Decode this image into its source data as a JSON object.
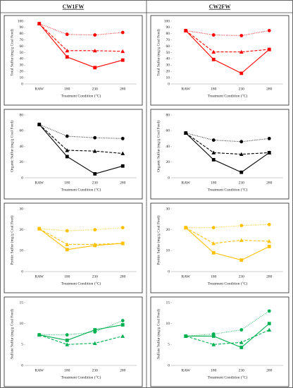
{
  "column_headers": [
    "CW1FW",
    "CW2FW"
  ],
  "chart_data": [
    {
      "type": "line",
      "y_label": "Total Sulfur (mg/g Coal Feed)",
      "x_label": "Treatment Condition (°C)",
      "categories": [
        "RAW",
        "180",
        "230",
        "280"
      ],
      "ylim": [
        0,
        100
      ],
      "yticks": [
        0,
        10,
        20,
        30,
        40,
        50,
        60,
        70,
        80,
        90,
        100
      ],
      "series": [
        {
          "color": "#ff0000",
          "marker": "circle",
          "line_style": "dotted",
          "values": [
            96,
            79,
            78,
            82
          ]
        },
        {
          "color": "#ff0000",
          "marker": "triangle",
          "line_style": "dashed",
          "values": [
            96,
            53,
            53,
            52
          ]
        },
        {
          "color": "#ff0000",
          "marker": "square",
          "line_style": "solid",
          "values": [
            96,
            43,
            26,
            38
          ]
        }
      ]
    },
    {
      "type": "line",
      "y_label": "Total Sulfur (mg/g Coal Feed)",
      "x_label": "Treatment Condition (°C)",
      "categories": [
        "RAW",
        "180",
        "230",
        "280"
      ],
      "ylim": [
        0,
        100
      ],
      "yticks": [
        0,
        10,
        20,
        30,
        40,
        50,
        60,
        70,
        80,
        90,
        100
      ],
      "series": [
        {
          "color": "#ff0000",
          "marker": "circle",
          "line_style": "dotted",
          "values": [
            85,
            78,
            77,
            85
          ]
        },
        {
          "color": "#ff0000",
          "marker": "triangle",
          "line_style": "dashed",
          "values": [
            85,
            51,
            51,
            55
          ]
        },
        {
          "color": "#ff0000",
          "marker": "square",
          "line_style": "solid",
          "values": [
            85,
            39,
            17,
            55
          ]
        }
      ]
    },
    {
      "type": "line",
      "y_label": "Organic Sulfur (mg/g Coal Feed)",
      "x_label": "Treatment Condition (°C)",
      "categories": [
        "RAW",
        "180",
        "230",
        "280"
      ],
      "ylim": [
        0,
        80
      ],
      "yticks": [
        0,
        20,
        40,
        60,
        80
      ],
      "series": [
        {
          "color": "#000000",
          "marker": "circle",
          "line_style": "dotted",
          "values": [
            68,
            53,
            51,
            50
          ]
        },
        {
          "color": "#000000",
          "marker": "triangle",
          "line_style": "dashed",
          "values": [
            68,
            35,
            34,
            31
          ]
        },
        {
          "color": "#000000",
          "marker": "square",
          "line_style": "solid",
          "values": [
            68,
            27,
            5,
            15
          ]
        }
      ]
    },
    {
      "type": "line",
      "y_label": "Organic Sulfur (mg/g Coal Feed)",
      "x_label": "Treatment Condition (°C)",
      "categories": [
        "RAW",
        "180",
        "230",
        "280"
      ],
      "ylim": [
        0,
        80
      ],
      "yticks": [
        0,
        20,
        40,
        60,
        80
      ],
      "series": [
        {
          "color": "#000000",
          "marker": "circle",
          "line_style": "dotted",
          "values": [
            57,
            48,
            46,
            50
          ]
        },
        {
          "color": "#000000",
          "marker": "triangle",
          "line_style": "dashed",
          "values": [
            57,
            32,
            30,
            32
          ]
        },
        {
          "color": "#000000",
          "marker": "square",
          "line_style": "solid",
          "values": [
            57,
            23,
            7,
            32
          ]
        }
      ]
    },
    {
      "type": "line",
      "y_label": "Pyritic Sulfur (mg/g Coal Feed)",
      "x_label": "Treatment Condition (°C)",
      "categories": [
        "RAW",
        "180",
        "230",
        "280"
      ],
      "ylim": [
        0,
        30
      ],
      "yticks": [
        0,
        10,
        20,
        30
      ],
      "series": [
        {
          "color": "#ffc000",
          "marker": "circle",
          "line_style": "dotted",
          "values": [
            20.5,
            19.5,
            20,
            21
          ]
        },
        {
          "color": "#ffc000",
          "marker": "triangle",
          "line_style": "dashed",
          "values": [
            20.5,
            13,
            13,
            13.5
          ]
        },
        {
          "color": "#ffc000",
          "marker": "square",
          "line_style": "solid",
          "values": [
            20.5,
            10.5,
            12.5,
            13.5
          ]
        }
      ]
    },
    {
      "type": "line",
      "y_label": "Pyritic Sulfur (mg/g Coal Feed)",
      "x_label": "Treatment Condition (°C)",
      "categories": [
        "RAW",
        "180",
        "230",
        "280"
      ],
      "ylim": [
        0,
        30
      ],
      "yticks": [
        0,
        10,
        20,
        30
      ],
      "series": [
        {
          "color": "#ffc000",
          "marker": "circle",
          "line_style": "dotted",
          "values": [
            21,
            21,
            22,
            22.5
          ]
        },
        {
          "color": "#ffc000",
          "marker": "triangle",
          "line_style": "dashed",
          "values": [
            21,
            13.5,
            15,
            14.5
          ]
        },
        {
          "color": "#ffc000",
          "marker": "square",
          "line_style": "solid",
          "values": [
            21,
            9,
            5.5,
            12
          ]
        }
      ]
    },
    {
      "type": "line",
      "y_label": "Sulfate Sulfur (mg/g Coal Feed)",
      "x_label": "Treatment Condition (°C)",
      "categories": [
        "RAW",
        "180",
        "230",
        "280"
      ],
      "ylim": [
        0,
        15
      ],
      "yticks": [
        0,
        5,
        10,
        15
      ],
      "series": [
        {
          "color": "#00b050",
          "marker": "circle",
          "line_style": "dotted",
          "values": [
            7.3,
            7.3,
            8,
            10.7
          ]
        },
        {
          "color": "#00b050",
          "marker": "triangle",
          "line_style": "dashed",
          "values": [
            7.3,
            5,
            5.3,
            7
          ]
        },
        {
          "color": "#00b050",
          "marker": "square",
          "line_style": "solid",
          "values": [
            7.3,
            6,
            8.5,
            9.7
          ]
        }
      ]
    },
    {
      "type": "line",
      "y_label": "Sulfate Sulfur (mg/g Coal Feed)",
      "x_label": "Treatment Condition (°C)",
      "categories": [
        "RAW",
        "180",
        "230",
        "280"
      ],
      "ylim": [
        0,
        15
      ],
      "yticks": [
        0,
        5,
        10,
        15
      ],
      "series": [
        {
          "color": "#00b050",
          "marker": "circle",
          "line_style": "dotted",
          "values": [
            7,
            7.5,
            8.5,
            13
          ]
        },
        {
          "color": "#00b050",
          "marker": "triangle",
          "line_style": "dashed",
          "values": [
            7,
            5,
            5.5,
            8.5
          ]
        },
        {
          "color": "#00b050",
          "marker": "square",
          "line_style": "solid",
          "values": [
            7,
            7,
            4.3,
            10
          ]
        }
      ]
    }
  ]
}
